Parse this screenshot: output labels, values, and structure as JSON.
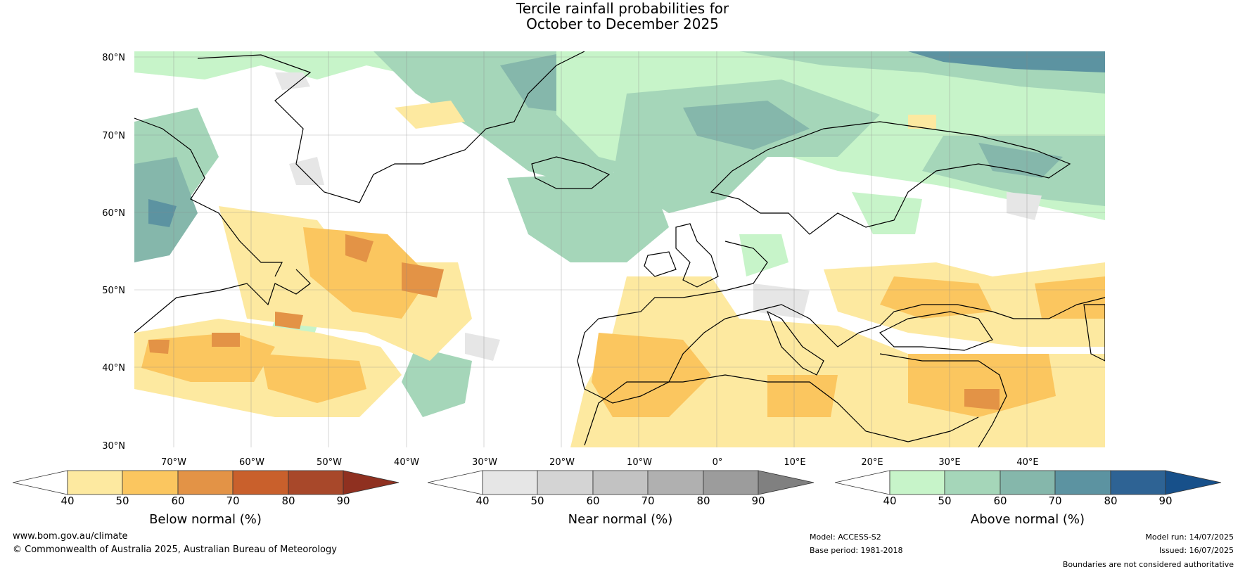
{
  "title": {
    "line1": "Tercile rainfall probabilities for",
    "line2": "October to December 2025"
  },
  "map": {
    "lat_labels": [
      "80°N",
      "70°N",
      "60°N",
      "50°N",
      "40°N",
      "30°N"
    ],
    "lon_labels": [
      "70°W",
      "60°W",
      "50°W",
      "40°W",
      "30°W",
      "20°W",
      "10°W",
      "0°",
      "10°E",
      "20°E",
      "30°E",
      "40°E"
    ],
    "grid": true,
    "region": "North Atlantic and Europe"
  },
  "colorbars": [
    {
      "title": "Below normal (%)",
      "ticks": [
        "40",
        "50",
        "60",
        "70",
        "80",
        "90"
      ],
      "colors": [
        "#ffffff",
        "#fde9a0",
        "#fbc65f",
        "#e39346",
        "#c9602c",
        "#a8482a",
        "#8f3020"
      ]
    },
    {
      "title": "Near normal (%)",
      "ticks": [
        "40",
        "50",
        "60",
        "70",
        "80",
        "90"
      ],
      "colors": [
        "#ffffff",
        "#e6e6e6",
        "#d4d4d4",
        "#c2c2c2",
        "#b0b0b0",
        "#9c9c9c",
        "#808080"
      ]
    },
    {
      "title": "Above normal (%)",
      "ticks": [
        "40",
        "50",
        "60",
        "70",
        "80",
        "90"
      ],
      "colors": [
        "#ffffff",
        "#c7f4c9",
        "#a5d6b9",
        "#85b7ab",
        "#5c93a1",
        "#2e6394",
        "#17508a"
      ]
    }
  ],
  "footer": {
    "website": "www.bom.gov.au/climate",
    "copyright": "© Commonwealth of Australia 2025, Australian Bureau of Meteorology",
    "model": "Model: ACCESS-S2",
    "base_period": "Base period: 1981-2018",
    "model_run": "Model run: 14/07/2025",
    "issued": "Issued: 16/07/2025",
    "disclaimer": "Boundaries are not considered authoritative"
  }
}
